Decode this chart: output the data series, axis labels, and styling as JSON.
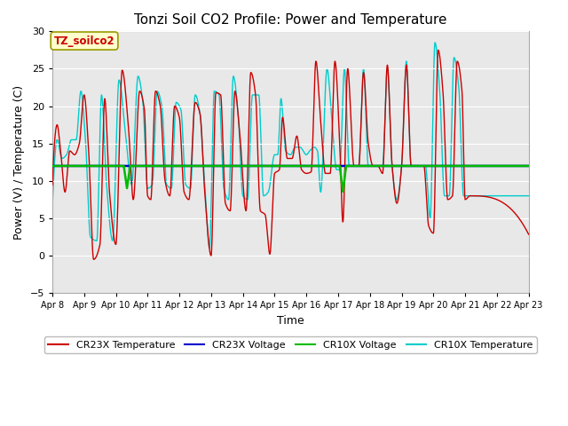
{
  "title": "Tonzi Soil CO2 Profile: Power and Temperature",
  "xlabel": "Time",
  "ylabel": "Power (V) / Temperature (C)",
  "ylim": [
    -5,
    30
  ],
  "yticks": [
    -5,
    0,
    5,
    10,
    15,
    20,
    25,
    30
  ],
  "xlim": [
    0,
    15
  ],
  "xtick_labels": [
    "Apr 8",
    "Apr 9",
    "Apr 10",
    "Apr 11",
    "Apr 12",
    "Apr 13",
    "Apr 14",
    "Apr 15",
    "Apr 16",
    "Apr 17",
    "Apr 18",
    "Apr 19",
    "Apr 20",
    "Apr 21",
    "Apr 22",
    "Apr 23"
  ],
  "xtick_positions": [
    0,
    1,
    2,
    3,
    4,
    5,
    6,
    7,
    8,
    9,
    10,
    11,
    12,
    13,
    14,
    15
  ],
  "color_cr23x_temp": "#cc0000",
  "color_cr23x_volt": "#0000cc",
  "color_cr10x_volt": "#00bb00",
  "color_cr10x_temp": "#00cccc",
  "voltage_value": 12.0,
  "plot_bg_color": "#e8e8e8",
  "legend_labels": [
    "CR23X Temperature",
    "CR23X Voltage",
    "CR10X Voltage",
    "CR10X Temperature"
  ],
  "label_box_text": "TZ_soilco2",
  "label_box_color": "#ffffcc",
  "label_box_border": "#999900",
  "title_fontsize": 11,
  "axis_fontsize": 9
}
